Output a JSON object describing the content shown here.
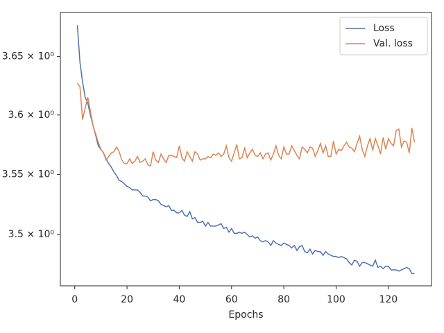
{
  "chart_data": {
    "type": "line",
    "xlabel": "Epochs",
    "x": [
      1,
      2,
      3,
      4,
      5,
      6,
      7,
      8,
      9,
      10,
      11,
      12,
      13,
      14,
      15,
      16,
      17,
      18,
      19,
      20,
      21,
      22,
      23,
      24,
      25,
      26,
      27,
      28,
      29,
      30,
      31,
      32,
      33,
      34,
      35,
      36,
      37,
      38,
      39,
      40,
      41,
      42,
      43,
      44,
      45,
      46,
      47,
      48,
      49,
      50,
      51,
      52,
      53,
      54,
      55,
      56,
      57,
      58,
      59,
      60,
      61,
      62,
      63,
      64,
      65,
      66,
      67,
      68,
      69,
      70,
      71,
      72,
      73,
      74,
      75,
      76,
      77,
      78,
      79,
      80,
      81,
      82,
      83,
      84,
      85,
      86,
      87,
      88,
      89,
      90,
      91,
      92,
      93,
      94,
      95,
      96,
      97,
      98,
      99,
      100,
      101,
      102,
      103,
      104,
      105,
      106,
      107,
      108,
      109,
      110,
      111,
      112,
      113,
      114,
      115,
      116,
      117,
      118,
      119,
      120,
      121,
      122,
      123,
      124,
      125,
      126,
      127,
      128,
      129,
      130
    ],
    "series": [
      {
        "name": "Loss",
        "color": "#4c72b0",
        "values": [
          3.677,
          3.645,
          3.628,
          3.615,
          3.61,
          3.6,
          3.591,
          3.583,
          3.574,
          3.571,
          3.568,
          3.563,
          3.559,
          3.556,
          3.552,
          3.549,
          3.545,
          3.544,
          3.542,
          3.54,
          3.539,
          3.537,
          3.537,
          3.537,
          3.535,
          3.532,
          3.532,
          3.531,
          3.528,
          3.529,
          3.529,
          3.528,
          3.525,
          3.524,
          3.523,
          3.524,
          3.52,
          3.52,
          3.518,
          3.518,
          3.52,
          3.516,
          3.515,
          3.519,
          3.513,
          3.514,
          3.51,
          3.51,
          3.511,
          3.507,
          3.51,
          3.507,
          3.507,
          3.507,
          3.508,
          3.509,
          3.505,
          3.506,
          3.502,
          3.505,
          3.501,
          3.501,
          3.502,
          3.501,
          3.502,
          3.5,
          3.498,
          3.499,
          3.497,
          3.498,
          3.495,
          3.494,
          3.495,
          3.494,
          3.491,
          3.495,
          3.493,
          3.492,
          3.491,
          3.493,
          3.492,
          3.491,
          3.489,
          3.491,
          3.487,
          3.49,
          3.491,
          3.486,
          3.485,
          3.488,
          3.484,
          3.487,
          3.486,
          3.486,
          3.483,
          3.486,
          3.484,
          3.483,
          3.482,
          3.482,
          3.481,
          3.482,
          3.481,
          3.48,
          3.477,
          3.475,
          3.479,
          3.478,
          3.474,
          3.477,
          3.477,
          3.476,
          3.475,
          3.474,
          3.479,
          3.473,
          3.474,
          3.472,
          3.474,
          3.474,
          3.471,
          3.471,
          3.471,
          3.47,
          3.471,
          3.472,
          3.473,
          3.472,
          3.468,
          3.468
        ]
      },
      {
        "name": "Val. loss",
        "color": "#dd8452",
        "values": [
          3.627,
          3.624,
          3.596,
          3.606,
          3.615,
          3.603,
          3.591,
          3.584,
          3.577,
          3.571,
          3.568,
          3.562,
          3.565,
          3.568,
          3.569,
          3.573,
          3.569,
          3.562,
          3.559,
          3.559,
          3.563,
          3.559,
          3.561,
          3.565,
          3.56,
          3.561,
          3.563,
          3.558,
          3.557,
          3.569,
          3.562,
          3.56,
          3.567,
          3.563,
          3.56,
          3.566,
          3.566,
          3.565,
          3.564,
          3.574,
          3.564,
          3.561,
          3.569,
          3.565,
          3.561,
          3.569,
          3.567,
          3.562,
          3.563,
          3.563,
          3.565,
          3.564,
          3.567,
          3.566,
          3.568,
          3.565,
          3.567,
          3.574,
          3.564,
          3.561,
          3.568,
          3.575,
          3.563,
          3.564,
          3.572,
          3.564,
          3.568,
          3.571,
          3.566,
          3.565,
          3.568,
          3.563,
          3.567,
          3.568,
          3.562,
          3.567,
          3.574,
          3.566,
          3.563,
          3.573,
          3.567,
          3.567,
          3.574,
          3.57,
          3.566,
          3.563,
          3.573,
          3.571,
          3.568,
          3.573,
          3.572,
          3.565,
          3.57,
          3.576,
          3.568,
          3.574,
          3.565,
          3.565,
          3.578,
          3.567,
          3.571,
          3.57,
          3.574,
          3.577,
          3.573,
          3.572,
          3.569,
          3.576,
          3.582,
          3.571,
          3.565,
          3.574,
          3.58,
          3.57,
          3.58,
          3.574,
          3.567,
          3.581,
          3.571,
          3.58,
          3.576,
          3.574,
          3.587,
          3.588,
          3.573,
          3.578,
          3.577,
          3.568,
          3.589,
          3.577
        ]
      }
    ],
    "xlim": [
      -5.5,
      136.5
    ],
    "xticks": [
      0,
      20,
      40,
      60,
      80,
      100,
      120
    ],
    "ylim": [
      3.458,
      3.688
    ],
    "yscale": "log",
    "yticks": [
      {
        "value": 3.5,
        "label": "3.5 × 10⁰"
      },
      {
        "value": 3.55,
        "label": "3.55 × 10⁰"
      },
      {
        "value": 3.6,
        "label": "3.6 × 10⁰"
      },
      {
        "value": 3.65,
        "label": "3.65 × 10⁰"
      }
    ],
    "legend": "upper right",
    "grid": false
  }
}
